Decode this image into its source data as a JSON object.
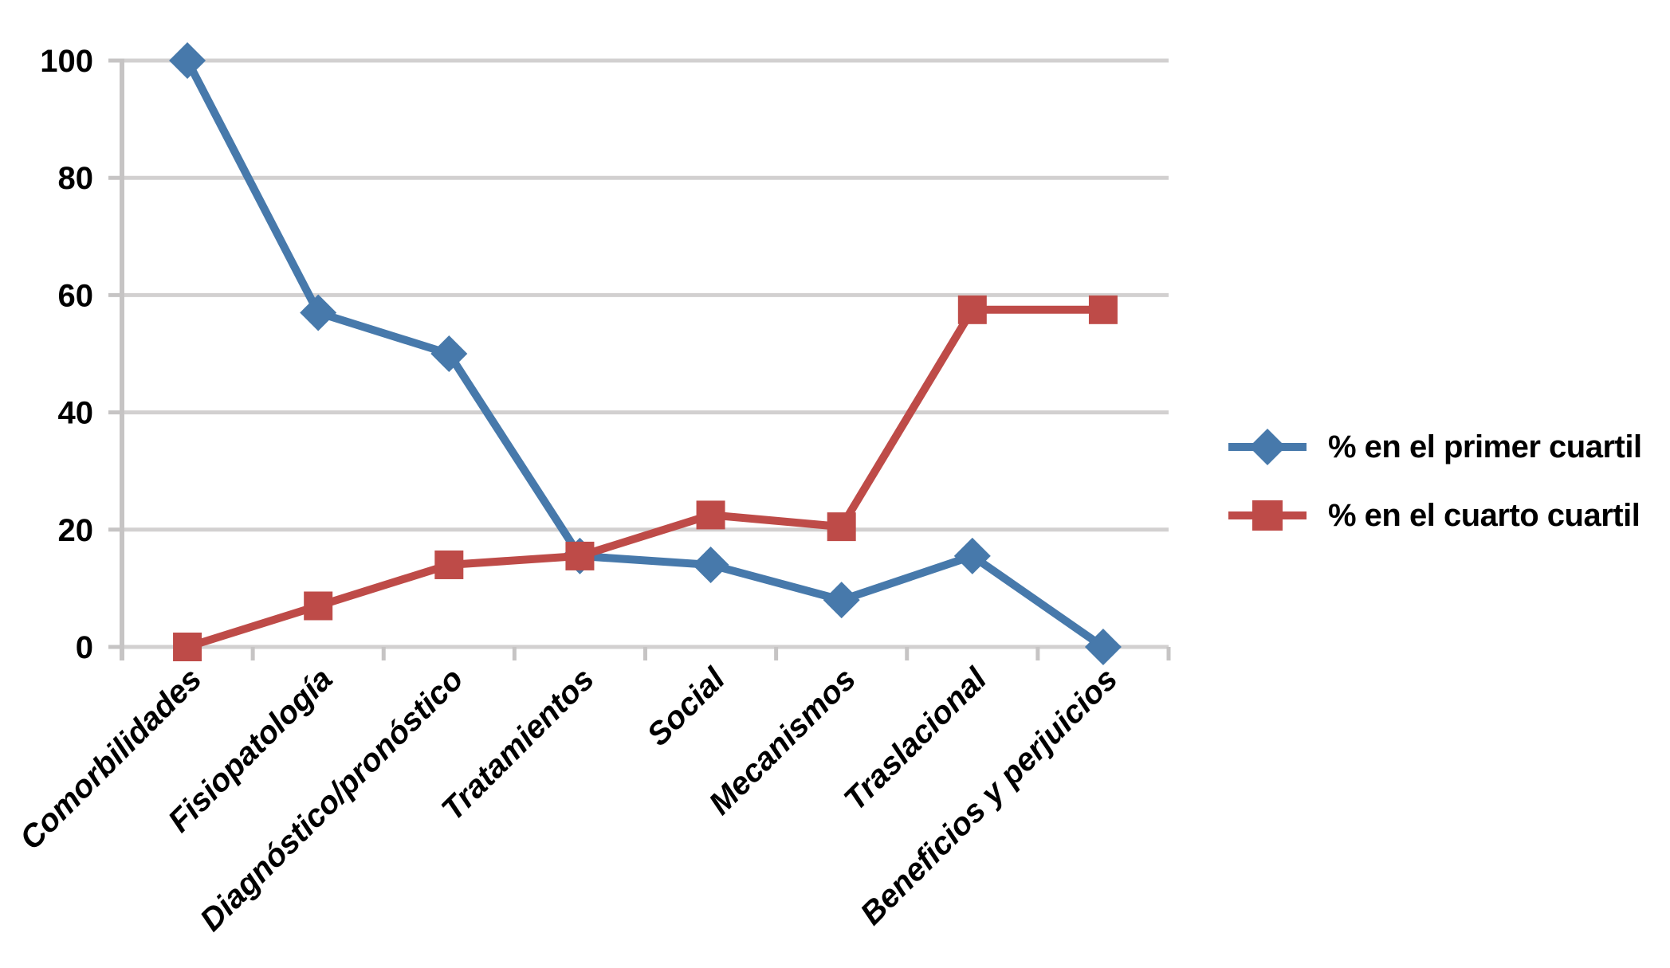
{
  "chart_data": {
    "type": "line",
    "title": "",
    "xlabel": "",
    "ylabel": "",
    "categories": [
      "Comorbilidades",
      "Fisiopatología",
      "Diagnóstico/pronóstico",
      "Tratamientos",
      "Social",
      "Mecanismos",
      "Traslacional",
      "Beneficios y perjuicios"
    ],
    "series": [
      {
        "name": "% en el primer cuartil",
        "marker": "diamond",
        "color": "#4779AB",
        "values": [
          100,
          57,
          50,
          15.5,
          14,
          8,
          15.5,
          0
        ]
      },
      {
        "name": "% en el cuarto cuartil",
        "marker": "square",
        "color": "#BE4B48",
        "values": [
          0,
          7,
          14,
          15.5,
          22.5,
          20.5,
          57.5,
          57.5
        ]
      }
    ],
    "ylim": [
      0,
      100
    ],
    "yticks": [
      0,
      20,
      40,
      60,
      80,
      100
    ],
    "grid": true,
    "legend_position": "right",
    "gridline_color": "#D2D0D0",
    "axis_color": "#C6C4C4",
    "background": "#FFFFFF"
  }
}
